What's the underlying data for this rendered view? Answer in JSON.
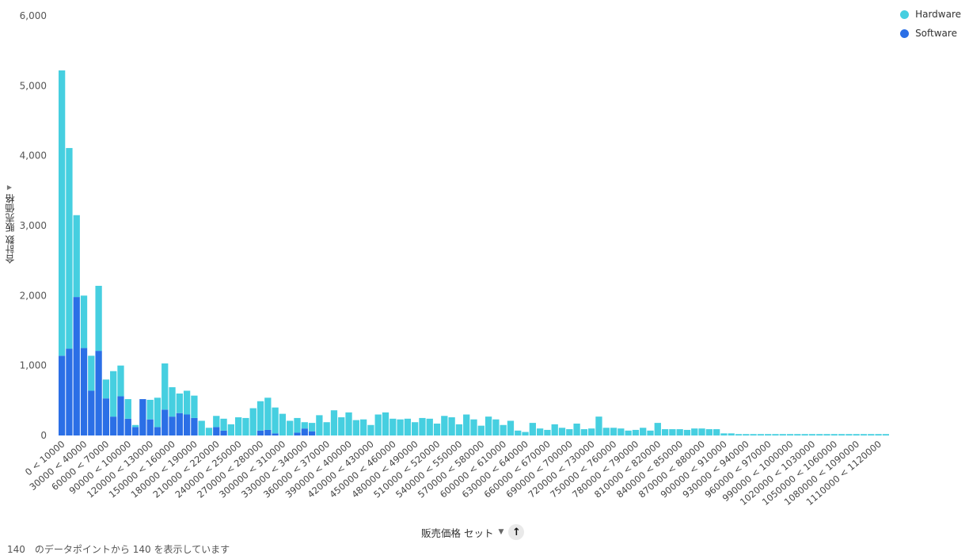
{
  "colors": {
    "hardware": "#46cfe0",
    "software": "#2b6fe6"
  },
  "legend": [
    {
      "label": "Hardware",
      "color": "#46cfe0"
    },
    {
      "label": "Software",
      "color": "#2b6fe6"
    }
  ],
  "y_axis_title": "合計数 販売価格",
  "x_axis_title": "販売価格 セット",
  "footer": "140　のデータポイントから 140 を表示しています",
  "chart_data": {
    "type": "bar",
    "stacked": true,
    "ylim": [
      0,
      6000
    ],
    "y_ticks": [
      "0",
      "1,000",
      "2,000",
      "3,000",
      "4,000",
      "5,000",
      "6,000"
    ],
    "x_tick_labels": [
      "0 < 10000",
      "30000 < 40000",
      "60000 < 70000",
      "90000 < 100000",
      "120000 < 130000",
      "150000 < 160000",
      "180000 < 190000",
      "210000 < 220000",
      "240000 < 250000",
      "270000 < 280000",
      "300000 < 310000",
      "330000 < 340000",
      "360000 < 370000",
      "390000 < 400000",
      "420000 < 430000",
      "450000 < 460000",
      "480000 < 490000",
      "510000 < 520000",
      "540000 < 550000",
      "570000 < 580000",
      "600000 < 610000",
      "630000 < 640000",
      "660000 < 670000",
      "690000 < 700000",
      "720000 < 730000",
      "750000 < 760000",
      "780000 < 790000",
      "810000 < 820000",
      "840000 < 850000",
      "870000 < 880000",
      "900000 < 910000",
      "930000 < 940000",
      "960000 < 970000",
      "990000 < 1000000",
      "1020000 < 1030000",
      "1050000 < 1060000",
      "1080000 < 1090000",
      "1110000 < 1120000"
    ],
    "series": [
      {
        "name": "Software",
        "values": [
          1140,
          1240,
          1980,
          1250,
          640,
          1210,
          530,
          270,
          560,
          240,
          120,
          520,
          230,
          120,
          370,
          270,
          320,
          300,
          250,
          0,
          0,
          120,
          70,
          0,
          0,
          0,
          0,
          70,
          80,
          30,
          0,
          0,
          40,
          100,
          60,
          0,
          0,
          0,
          0,
          0,
          0,
          0,
          0,
          0,
          0,
          0,
          0,
          0,
          0,
          0,
          0,
          0,
          0,
          0,
          0,
          0,
          0,
          0,
          0,
          0,
          0,
          0,
          0,
          0,
          0,
          0,
          0,
          0,
          0,
          0,
          0,
          0,
          0,
          0,
          0,
          0,
          0,
          0,
          0,
          0,
          0,
          0,
          0,
          0,
          0,
          0,
          0,
          0,
          0,
          0,
          0,
          0,
          0,
          0,
          0,
          0,
          0,
          0,
          0,
          0,
          0,
          0,
          0,
          0,
          0,
          0,
          0,
          0,
          0,
          0,
          0,
          0,
          0
        ]
      },
      {
        "name": "Hardware",
        "values": [
          4080,
          2870,
          1170,
          750,
          500,
          930,
          270,
          650,
          440,
          280,
          30,
          0,
          280,
          420,
          660,
          420,
          280,
          340,
          320,
          210,
          110,
          160,
          170,
          160,
          260,
          250,
          390,
          420,
          460,
          370,
          310,
          210,
          210,
          90,
          120,
          290,
          190,
          360,
          260,
          330,
          220,
          230,
          150,
          300,
          330,
          240,
          230,
          240,
          190,
          250,
          240,
          170,
          280,
          260,
          160,
          300,
          230,
          140,
          270,
          230,
          150,
          210,
          70,
          50,
          180,
          100,
          80,
          160,
          110,
          90,
          170,
          90,
          100,
          270,
          110,
          110,
          100,
          70,
          80,
          110,
          70,
          180,
          90,
          90,
          90,
          80,
          100,
          100,
          90,
          90,
          30,
          30,
          20,
          20,
          20,
          20,
          20,
          20,
          20,
          20,
          20,
          20,
          20,
          20,
          20,
          20,
          20,
          20,
          20,
          20,
          20,
          20,
          20
        ]
      }
    ]
  }
}
